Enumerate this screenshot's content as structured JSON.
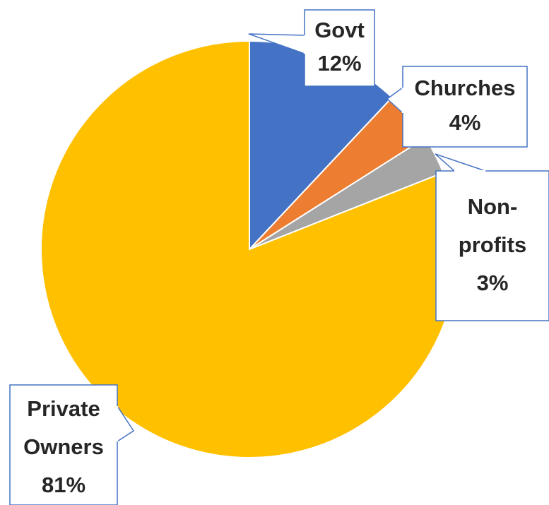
{
  "chart_data": {
    "type": "pie",
    "slices": [
      {
        "label_lines": [
          "Govt",
          "12%"
        ],
        "value": 12,
        "color": "#4472C4"
      },
      {
        "label_lines": [
          "Churches",
          "4%"
        ],
        "value": 4,
        "color": "#ED7D31"
      },
      {
        "label_lines": [
          "Non-",
          "profits",
          "3%"
        ],
        "value": 3,
        "color": "#A5A5A5"
      },
      {
        "label_lines": [
          "Private",
          "Owners",
          "81%"
        ],
        "value": 81,
        "color": "#FFC000"
      }
    ],
    "label_style": "callouts",
    "legend": "none"
  }
}
